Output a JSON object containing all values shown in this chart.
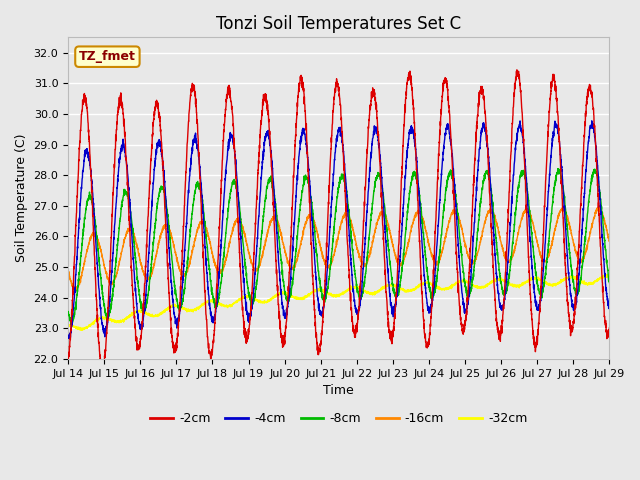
{
  "title": "Tonzi Soil Temperatures Set C",
  "xlabel": "Time",
  "ylabel": "Soil Temperature (C)",
  "ylim": [
    22.0,
    32.5
  ],
  "yticks": [
    22.0,
    23.0,
    24.0,
    25.0,
    26.0,
    27.0,
    28.0,
    29.0,
    30.0,
    31.0,
    32.0
  ],
  "x_tick_labels": [
    "Jul 14",
    "Jul 15",
    "Jul 16",
    "Jul 17",
    "Jul 18",
    "Jul 19",
    "Jul 20",
    "Jul 21",
    "Jul 22",
    "Jul 23",
    "Jul 24",
    "Jul 25",
    "Jul 26",
    "Jul 27",
    "Jul 28",
    "Jul 29"
  ],
  "annotation_text": "TZ_fmet",
  "annotation_bg": "#ffffcc",
  "annotation_border": "#cc8800",
  "colors": {
    "-2cm": "#dd0000",
    "-4cm": "#0000cc",
    "-8cm": "#00bb00",
    "-16cm": "#ff8800",
    "-32cm": "#ffff00"
  },
  "legend_labels": [
    "-2cm",
    "-4cm",
    "-8cm",
    "-16cm",
    "-32cm"
  ],
  "bg_color": "#e8e8e8",
  "grid_color": "#ffffff",
  "title_fontsize": 12,
  "label_fontsize": 9,
  "tick_fontsize": 8,
  "legend_fontsize": 9
}
